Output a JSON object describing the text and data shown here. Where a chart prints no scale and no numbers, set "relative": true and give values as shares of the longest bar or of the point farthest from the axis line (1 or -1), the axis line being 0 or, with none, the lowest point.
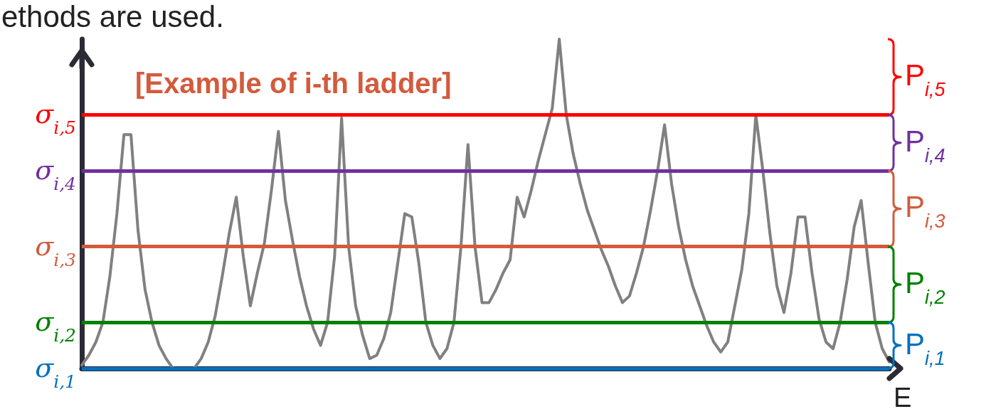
{
  "chart_data": {
    "type": "line",
    "relative": true,
    "title": "[Example of i-th ladder]",
    "xlabel": "E",
    "annotations": [
      "ethods are used.",
      "P$_{i,5}$",
      "P$_{i,4}$",
      "P$_{i,3}$",
      "P$_{i,2}$",
      "P$_{i,1}$"
    ],
    "categories": [
      null,
      null,
      null,
      null,
      null,
      null,
      null,
      null,
      null,
      null,
      null,
      null,
      null,
      null,
      null,
      null,
      null,
      null,
      null,
      null,
      null,
      null,
      null,
      null,
      null,
      null,
      null,
      null,
      null,
      null,
      null,
      null,
      null,
      null,
      null,
      null,
      null,
      null,
      null,
      null,
      null,
      null,
      null,
      null,
      null,
      null,
      null,
      null,
      null,
      null,
      null,
      null,
      null,
      null,
      null,
      null,
      null,
      null,
      null,
      null,
      null,
      null,
      null,
      null,
      null,
      null,
      null,
      null,
      null,
      null,
      null,
      null,
      null,
      null,
      null,
      null,
      null,
      null,
      null,
      null,
      null,
      null,
      null,
      null,
      null,
      null,
      null,
      null,
      null,
      null,
      null,
      null,
      null,
      null,
      null,
      null,
      null,
      null,
      null,
      null,
      null,
      null,
      null,
      null,
      null,
      null,
      null,
      null,
      null,
      null,
      null,
      null,
      null,
      null,
      null,
      null
    ],
    "series": [
      {
        "color": "#808080",
        "values": [
          0.01,
          0.04,
          0.08,
          0.14,
          0.28,
          0.47,
          0.71,
          0.71,
          0.42,
          0.24,
          0.14,
          0.07,
          0.03,
          0,
          0,
          0,
          0,
          0.03,
          0.08,
          0.16,
          0.28,
          0.41,
          0.52,
          0.34,
          0.19,
          0.29,
          0.38,
          0.54,
          0.72,
          0.51,
          0.39,
          0.28,
          0.19,
          0.12,
          0.07,
          0.14,
          0.34,
          0.76,
          0.37,
          0.19,
          0.1,
          0.03,
          0.04,
          0.09,
          0.17,
          0.32,
          0.47,
          0.46,
          0.32,
          0.14,
          0.07,
          0.03,
          0.06,
          0.14,
          0.37,
          0.68,
          0.37,
          0.2,
          0.2,
          0.24,
          0.29,
          0.33,
          0.52,
          0.46,
          0.54,
          0.63,
          0.71,
          0.79,
          1,
          0.77,
          0.65,
          0.56,
          0.48,
          0.42,
          0.36,
          0.31,
          0.25,
          0.2,
          0.22,
          0.29,
          0.37,
          0.48,
          0.6,
          0.74,
          0.56,
          0.43,
          0.33,
          0.25,
          0.19,
          0.13,
          0.08,
          0.05,
          0.08,
          0.19,
          0.3,
          0.47,
          0.77,
          0.6,
          0.41,
          0.25,
          0.17,
          0.29,
          0.46,
          0.46,
          0.29,
          0.15,
          0.08,
          0.06,
          0.14,
          0.27,
          0.43,
          0.51,
          0.32,
          0.14,
          0.06,
          0.02
        ]
      }
    ],
    "ref_lines": [
      {
        "axis": "y",
        "value": 0.77,
        "label": "σ$_{i,5}$",
        "color": "#ff0000"
      },
      {
        "axis": "y",
        "value": 0.6,
        "label": "σ$_{i,4}$",
        "color": "#7030a0"
      },
      {
        "axis": "y",
        "value": 0.37,
        "label": "σ$_{i,3}$",
        "color": "#d35b3c"
      },
      {
        "axis": "y",
        "value": 0.14,
        "label": "σ$_{i,2}$",
        "color": "#008000"
      },
      {
        "axis": "y",
        "value": 0,
        "label": "σ$_{i,1}$",
        "color": "#0070c0"
      }
    ],
    "grid": false,
    "marker": "none",
    "line_style": "solid"
  }
}
